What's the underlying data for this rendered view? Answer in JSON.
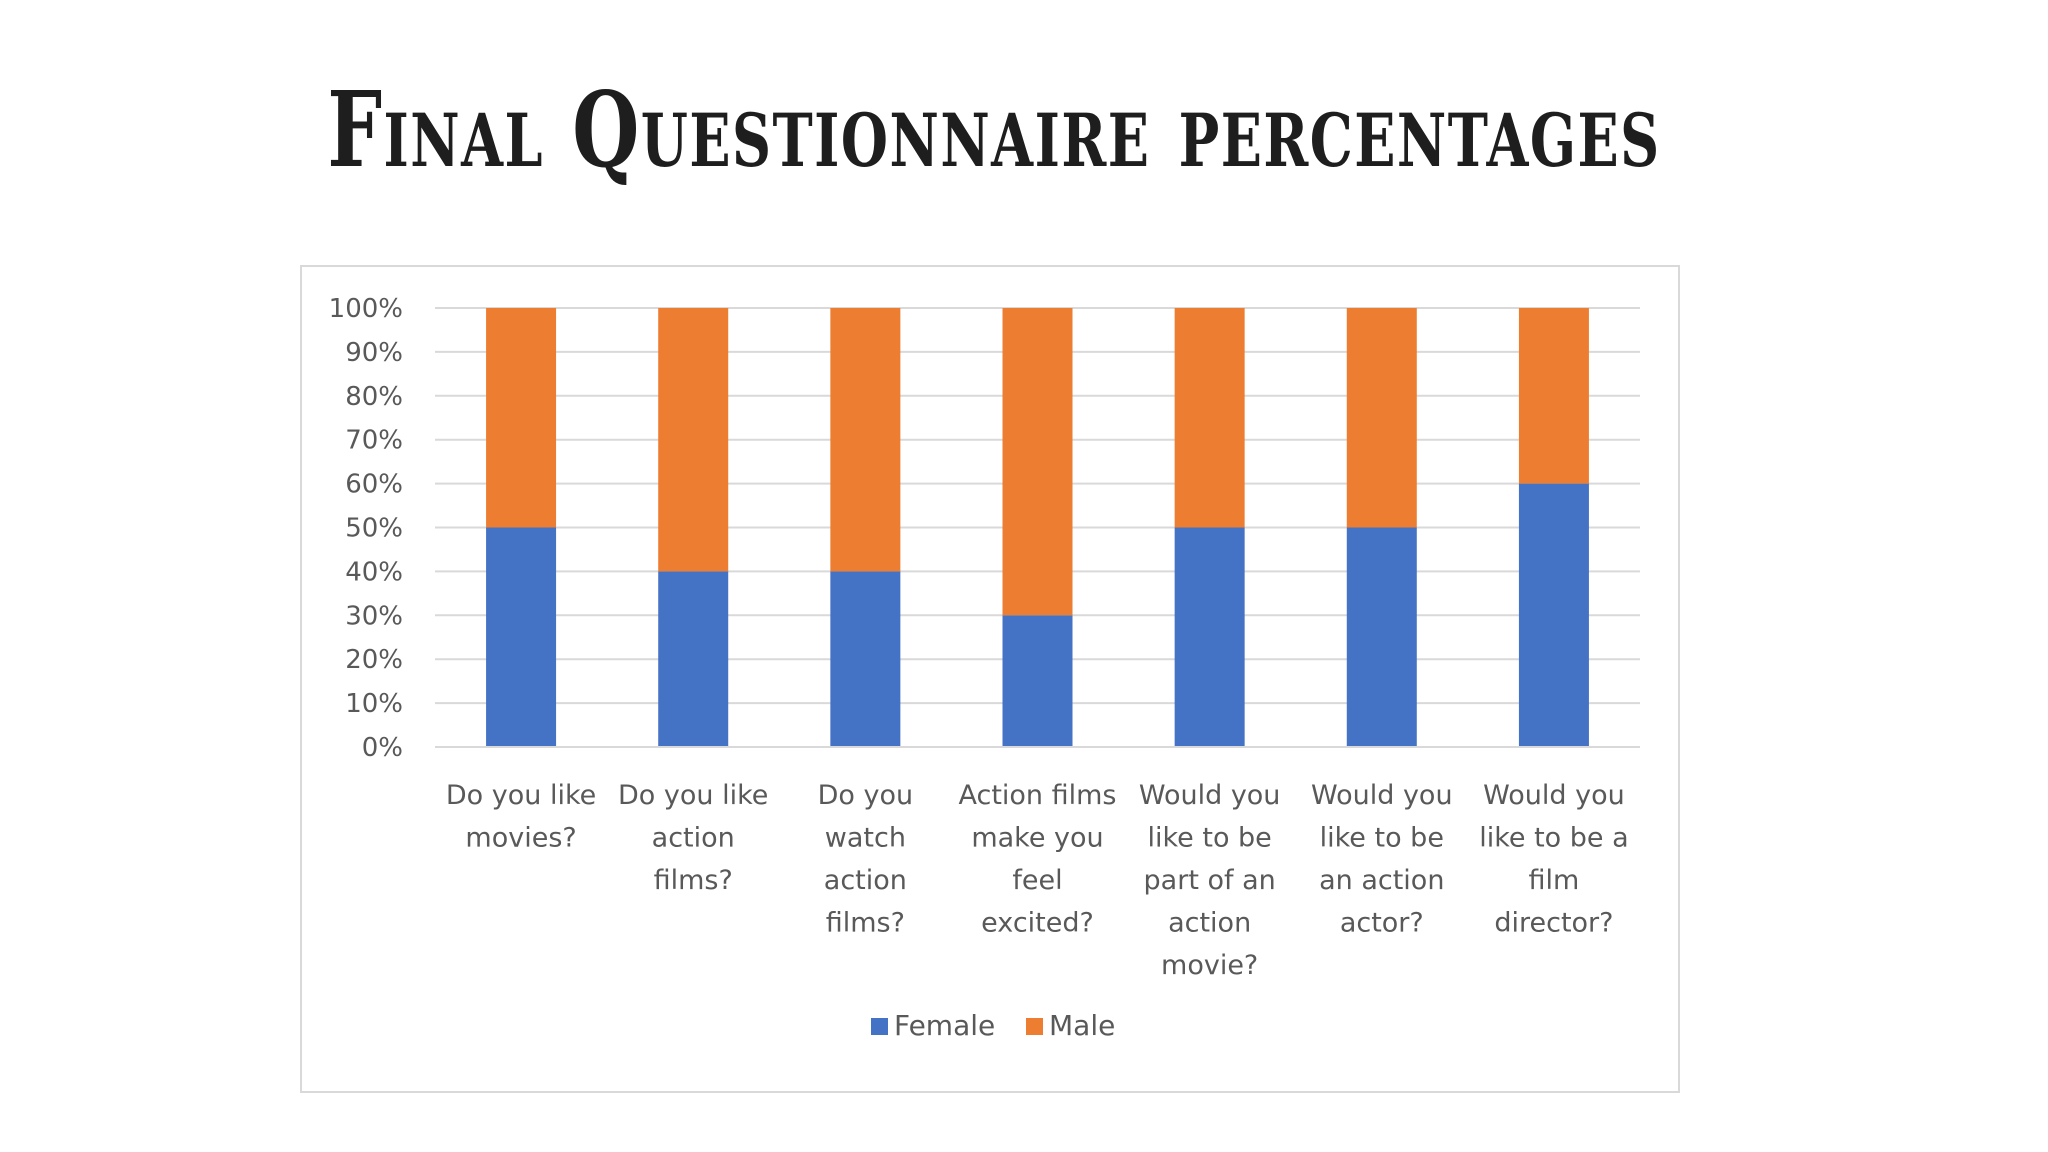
{
  "slide": {
    "title": "Final Questionnaire percentages"
  },
  "chart_data": {
    "type": "bar",
    "stacked": true,
    "percent_stacked": true,
    "categories": [
      [
        "Do you like",
        "movies?"
      ],
      [
        "Do you like",
        "action",
        "films?"
      ],
      [
        "Do you",
        "watch",
        "action",
        "films?"
      ],
      [
        "Action films",
        "make you",
        "feel",
        "excited?"
      ],
      [
        "Would you",
        "like to be",
        "part of an",
        "action",
        "movie?"
      ],
      [
        "Would you",
        "like to be",
        "an action",
        "actor?"
      ],
      [
        "Would you",
        "like to be a",
        "film",
        "director?"
      ]
    ],
    "series": [
      {
        "name": "Female",
        "color": "#4472C4",
        "values": [
          50,
          40,
          40,
          30,
          50,
          50,
          60
        ]
      },
      {
        "name": "Male",
        "color": "#ED7D31",
        "values": [
          50,
          60,
          60,
          70,
          50,
          50,
          40
        ]
      }
    ],
    "ylim": [
      0,
      100
    ],
    "y_ticks": [
      "0%",
      "10%",
      "20%",
      "30%",
      "40%",
      "50%",
      "60%",
      "70%",
      "80%",
      "90%",
      "100%"
    ],
    "grid": true,
    "legend_position": "bottom",
    "xlabel": "",
    "ylabel": ""
  }
}
